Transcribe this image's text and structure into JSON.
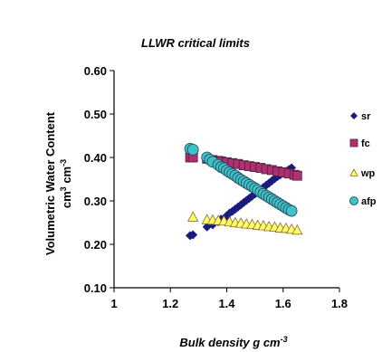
{
  "chart_data": {
    "type": "scatter",
    "title": "LLWR critical  limits",
    "ylabel_line1": "Volumetric Water Content",
    "ylabel_line2_base": "cm",
    "ylabel_line2_sup1": "3",
    "ylabel_line2_mid": " cm",
    "ylabel_line2_sup2": "-3",
    "xlabel_base": "Bulk density  g cm",
    "xlabel_sup": "-3",
    "xlim": [
      1,
      1.8
    ],
    "ylim": [
      0.1,
      0.6
    ],
    "x_ticks": [
      "1",
      "1.2",
      "1.4",
      "1.6",
      "1.8"
    ],
    "y_ticks": [
      "0.10",
      "0.20",
      "0.30",
      "0.40",
      "0.50",
      "0.60"
    ],
    "grid": false,
    "legend_position": "right",
    "series": [
      {
        "name": "sr",
        "marker": "diamond",
        "color": "#1a1a80",
        "points": [
          [
            1.27,
            0.22
          ],
          [
            1.28,
            0.222
          ],
          [
            1.33,
            0.24
          ],
          [
            1.35,
            0.245
          ],
          [
            1.37,
            0.252
          ],
          [
            1.38,
            0.258
          ],
          [
            1.4,
            0.266
          ],
          [
            1.41,
            0.272
          ],
          [
            1.42,
            0.276
          ],
          [
            1.43,
            0.281
          ],
          [
            1.44,
            0.286
          ],
          [
            1.45,
            0.291
          ],
          [
            1.46,
            0.296
          ],
          [
            1.47,
            0.301
          ],
          [
            1.48,
            0.306
          ],
          [
            1.49,
            0.311
          ],
          [
            1.5,
            0.316
          ],
          [
            1.51,
            0.321
          ],
          [
            1.52,
            0.326
          ],
          [
            1.53,
            0.331
          ],
          [
            1.54,
            0.336
          ],
          [
            1.55,
            0.341
          ],
          [
            1.56,
            0.346
          ],
          [
            1.57,
            0.351
          ],
          [
            1.58,
            0.356
          ],
          [
            1.59,
            0.36
          ],
          [
            1.6,
            0.364
          ],
          [
            1.61,
            0.368
          ],
          [
            1.62,
            0.372
          ],
          [
            1.63,
            0.376
          ]
        ]
      },
      {
        "name": "fc",
        "marker": "square",
        "color": "#b0306f",
        "points": [
          [
            1.27,
            0.4
          ],
          [
            1.28,
            0.4
          ],
          [
            1.33,
            0.397
          ],
          [
            1.35,
            0.394
          ],
          [
            1.37,
            0.392
          ],
          [
            1.38,
            0.391
          ],
          [
            1.4,
            0.389
          ],
          [
            1.42,
            0.387
          ],
          [
            1.44,
            0.385
          ],
          [
            1.46,
            0.382
          ],
          [
            1.48,
            0.38
          ],
          [
            1.5,
            0.378
          ],
          [
            1.52,
            0.376
          ],
          [
            1.54,
            0.373
          ],
          [
            1.56,
            0.371
          ],
          [
            1.58,
            0.368
          ],
          [
            1.6,
            0.366
          ],
          [
            1.62,
            0.363
          ],
          [
            1.64,
            0.36
          ],
          [
            1.65,
            0.358
          ]
        ]
      },
      {
        "name": "wp",
        "marker": "triangle",
        "color": "#ffff66",
        "points": [
          [
            1.28,
            0.263
          ],
          [
            1.33,
            0.257
          ],
          [
            1.35,
            0.256
          ],
          [
            1.37,
            0.255
          ],
          [
            1.39,
            0.254
          ],
          [
            1.41,
            0.252
          ],
          [
            1.43,
            0.25
          ],
          [
            1.45,
            0.249
          ],
          [
            1.47,
            0.247
          ],
          [
            1.49,
            0.246
          ],
          [
            1.51,
            0.244
          ],
          [
            1.53,
            0.243
          ],
          [
            1.55,
            0.241
          ],
          [
            1.57,
            0.24
          ],
          [
            1.59,
            0.238
          ],
          [
            1.61,
            0.237
          ],
          [
            1.63,
            0.235
          ],
          [
            1.65,
            0.233
          ]
        ]
      },
      {
        "name": "afp",
        "marker": "circle",
        "color": "#40c0c8",
        "points": [
          [
            1.27,
            0.42
          ],
          [
            1.28,
            0.418
          ],
          [
            1.33,
            0.4
          ],
          [
            1.34,
            0.395
          ],
          [
            1.35,
            0.39
          ],
          [
            1.37,
            0.383
          ],
          [
            1.38,
            0.378
          ],
          [
            1.39,
            0.375
          ],
          [
            1.4,
            0.37
          ],
          [
            1.41,
            0.366
          ],
          [
            1.42,
            0.362
          ],
          [
            1.43,
            0.358
          ],
          [
            1.44,
            0.353
          ],
          [
            1.45,
            0.349
          ],
          [
            1.46,
            0.345
          ],
          [
            1.47,
            0.341
          ],
          [
            1.48,
            0.337
          ],
          [
            1.49,
            0.333
          ],
          [
            1.5,
            0.329
          ],
          [
            1.51,
            0.325
          ],
          [
            1.52,
            0.32
          ],
          [
            1.53,
            0.316
          ],
          [
            1.54,
            0.312
          ],
          [
            1.55,
            0.308
          ],
          [
            1.56,
            0.304
          ],
          [
            1.57,
            0.3
          ],
          [
            1.58,
            0.296
          ],
          [
            1.59,
            0.292
          ],
          [
            1.6,
            0.288
          ],
          [
            1.61,
            0.284
          ],
          [
            1.62,
            0.28
          ],
          [
            1.63,
            0.277
          ]
        ]
      }
    ]
  }
}
